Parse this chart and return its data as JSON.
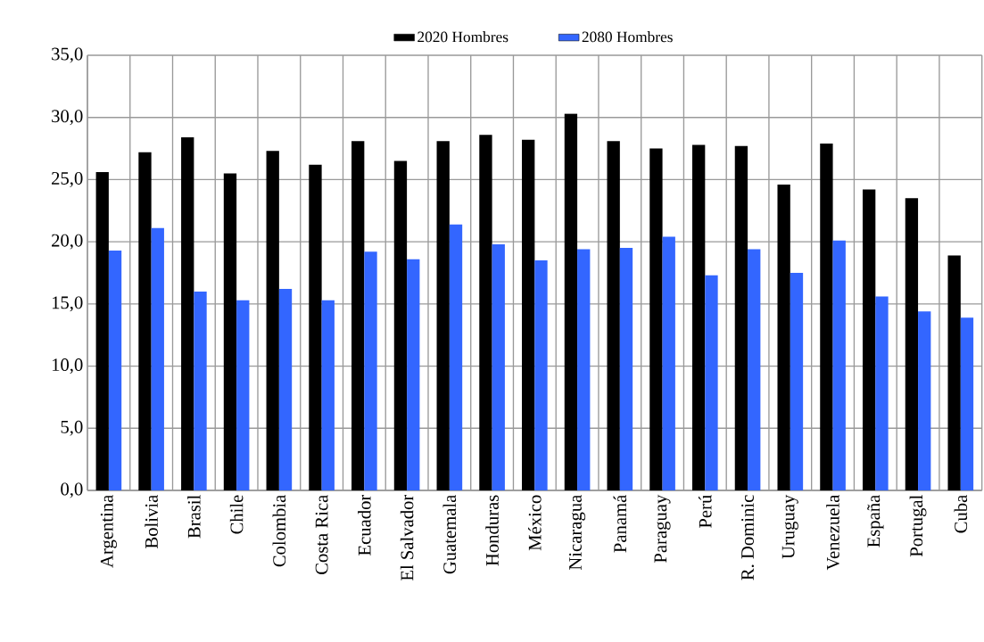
{
  "chart_data": {
    "type": "bar",
    "categories": [
      "Argentina",
      "Bolivia",
      "Brasil",
      "Chile",
      "Colombia",
      "Costa Rica",
      "Ecuador",
      "El Salvador",
      "Guatemala",
      "Honduras",
      "México",
      "Nicaragua",
      "Panamá",
      "Paraguay",
      "Perú",
      "R. Dominic",
      "Uruguay",
      "Venezuela",
      "España",
      "Portugal",
      "Cuba"
    ],
    "series": [
      {
        "name": "2020 Hombres",
        "color": "#000000",
        "values": [
          25.6,
          27.2,
          28.4,
          25.5,
          27.3,
          26.2,
          28.1,
          26.5,
          28.1,
          28.6,
          28.2,
          30.3,
          28.1,
          27.5,
          27.8,
          27.7,
          24.6,
          27.9,
          24.2,
          23.5,
          18.9
        ]
      },
      {
        "name": "2080 Hombres",
        "color": "#3366ff",
        "values": [
          19.3,
          21.1,
          16.0,
          15.3,
          16.2,
          15.3,
          19.2,
          18.6,
          21.4,
          19.8,
          18.5,
          19.4,
          19.5,
          20.4,
          17.3,
          19.4,
          17.5,
          20.1,
          15.6,
          14.4,
          13.9
        ]
      }
    ],
    "ylim": [
      0,
      35
    ],
    "yticks": [
      {
        "value": 0,
        "label": "0,0"
      },
      {
        "value": 5,
        "label": "5,0"
      },
      {
        "value": 10,
        "label": "10,0"
      },
      {
        "value": 15,
        "label": "15,0"
      },
      {
        "value": 20,
        "label": "20,0"
      },
      {
        "value": 25,
        "label": "25,0"
      },
      {
        "value": 30,
        "label": "30,0"
      },
      {
        "value": 35,
        "label": "35,0"
      }
    ],
    "grid": true,
    "legend": "top"
  }
}
